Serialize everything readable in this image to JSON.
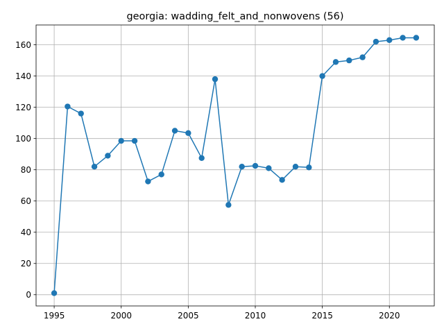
{
  "chart_data": {
    "type": "line",
    "title": "georgia: wadding_felt_and_nonwovens (56)",
    "xlabel": "",
    "ylabel": "",
    "x": [
      1995,
      1996,
      1997,
      1998,
      1999,
      2000,
      2001,
      2002,
      2003,
      2004,
      2005,
      2006,
      2007,
      2008,
      2009,
      2010,
      2011,
      2012,
      2013,
      2014,
      2015,
      2016,
      2017,
      2018,
      2019,
      2020,
      2021,
      2022
    ],
    "series": [
      {
        "values": [
          1,
          120.5,
          116,
          82,
          89,
          98.5,
          98.5,
          72.5,
          77,
          105,
          103.5,
          87.5,
          138,
          57.5,
          82,
          82.5,
          81,
          73.5,
          82,
          81.5,
          140,
          149,
          150,
          152,
          162,
          163,
          164.5,
          164.5
        ],
        "color": "#1f77b4"
      }
    ],
    "xlim": [
      1993.65,
      2023.35
    ],
    "ylim": [
      -7.2,
      172.7
    ],
    "xticks": [
      1995,
      2000,
      2005,
      2010,
      2015,
      2020
    ],
    "yticks": [
      0,
      20,
      40,
      60,
      80,
      100,
      120,
      140,
      160
    ],
    "grid": true,
    "legend": "none"
  }
}
